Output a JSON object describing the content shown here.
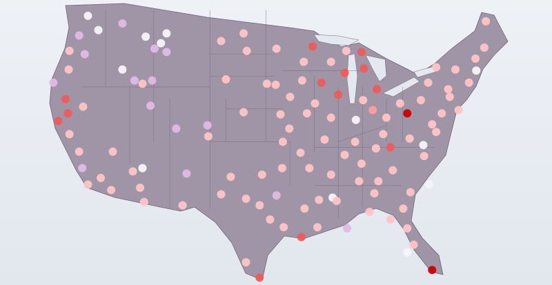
{
  "map": {
    "region": "contiguous-united-states",
    "land_color": "#9f95a6",
    "border_color": "#6f6679",
    "water_color": "#e4e9f0",
    "level_colors": [
      "#f7f4f8",
      "#e2b9e4",
      "#ffc4c4",
      "#ff9e9e",
      "#f05a5a",
      "#cc0000"
    ],
    "points": [
      [
        -119.2,
        48.5,
        0
      ],
      [
        -117.9,
        47.2,
        0
      ],
      [
        -114.9,
        47.8,
        1
      ],
      [
        -120.3,
        46.7,
        1
      ],
      [
        -119.6,
        45.0,
        1
      ],
      [
        -121.5,
        45.3,
        2
      ],
      [
        -121.6,
        43.6,
        2
      ],
      [
        -123.5,
        42.4,
        1
      ],
      [
        -114.9,
        43.6,
        0
      ],
      [
        -112.0,
        46.6,
        0
      ],
      [
        -109.4,
        46.9,
        0
      ],
      [
        -110.1,
        46.0,
        0
      ],
      [
        -110.9,
        45.5,
        1
      ],
      [
        -109.4,
        45.2,
        1
      ],
      [
        -113.4,
        42.6,
        1
      ],
      [
        -112.4,
        42.3,
        2
      ],
      [
        -111.2,
        42.6,
        1
      ],
      [
        -122.0,
        40.9,
        4
      ],
      [
        -121.7,
        39.6,
        4
      ],
      [
        -122.9,
        38.9,
        4
      ],
      [
        -119.8,
        40.2,
        2
      ],
      [
        -121.5,
        37.7,
        2
      ],
      [
        -120.3,
        36.1,
        2
      ],
      [
        -119.9,
        34.6,
        1
      ],
      [
        -119.2,
        33.1,
        2
      ],
      [
        -117.6,
        33.7,
        2
      ],
      [
        -116.1,
        36.1,
        2
      ],
      [
        -116.3,
        32.6,
        2
      ],
      [
        -113.6,
        34.3,
        2
      ],
      [
        -112.4,
        34.6,
        0
      ],
      [
        -112.7,
        32.8,
        2
      ],
      [
        -112.2,
        31.5,
        2
      ],
      [
        -111.4,
        40.3,
        1
      ],
      [
        -108.2,
        38.2,
        1
      ],
      [
        -104.3,
        38.5,
        1
      ],
      [
        -104.2,
        37.5,
        2
      ],
      [
        -106.9,
        34.1,
        1
      ],
      [
        -107.4,
        31.2,
        2
      ],
      [
        -102.6,
        46.2,
        2
      ],
      [
        -99.8,
        46.9,
        2
      ],
      [
        -99.4,
        45.3,
        2
      ],
      [
        -95.7,
        45.5,
        2
      ],
      [
        -102.0,
        42.7,
        2
      ],
      [
        -99.8,
        39.7,
        2
      ],
      [
        -96.9,
        42.3,
        2
      ],
      [
        -95.8,
        42.2,
        2
      ],
      [
        -95.2,
        39.5,
        2
      ],
      [
        -94.1,
        38.2,
        2
      ],
      [
        -94.9,
        37.0,
        2
      ],
      [
        -92.7,
        36.0,
        2
      ],
      [
        -95.0,
        34.6,
        2
      ],
      [
        -97.5,
        34.0,
        2
      ],
      [
        -101.4,
        33.8,
        2
      ],
      [
        -102.6,
        32.2,
        2
      ],
      [
        -99.5,
        31.8,
        2
      ],
      [
        -97.8,
        31.2,
        2
      ],
      [
        -95.7,
        32.1,
        1
      ],
      [
        -96.5,
        29.9,
        2
      ],
      [
        -94.8,
        29.2,
        2
      ],
      [
        -99.5,
        26.0,
        2
      ],
      [
        -97.8,
        24.6,
        4
      ],
      [
        -92.6,
        28.3,
        4
      ],
      [
        -90.6,
        29.2,
        2
      ],
      [
        -88.7,
        31.9,
        0
      ],
      [
        -86.9,
        29.1,
        1
      ],
      [
        -88.2,
        31.6,
        2
      ],
      [
        -91.2,
        45.7,
        4
      ],
      [
        -92.5,
        42.6,
        2
      ],
      [
        -90.1,
        42.4,
        4
      ],
      [
        -87.2,
        43.3,
        4
      ],
      [
        -88.0,
        41.3,
        4
      ],
      [
        -85.8,
        39.0,
        0
      ],
      [
        -84.8,
        43.7,
        4
      ],
      [
        -85.1,
        45.2,
        4
      ],
      [
        -87.0,
        45.3,
        2
      ],
      [
        -83.2,
        41.8,
        4
      ],
      [
        -81.5,
        36.5,
        4
      ],
      [
        -79.4,
        39.6,
        5
      ],
      [
        -75.8,
        43.8,
        2
      ],
      [
        -69.6,
        48.0,
        2
      ],
      [
        -70.8,
        43.5,
        0
      ],
      [
        -69.8,
        45.6,
        2
      ],
      [
        -74.1,
        41.1,
        2
      ],
      [
        -75.8,
        37.9,
        2
      ],
      [
        -76.7,
        33.1,
        0
      ],
      [
        -79.0,
        32.4,
        2
      ],
      [
        -79.4,
        29.1,
        2
      ],
      [
        -78.6,
        27.6,
        2
      ],
      [
        -76.3,
        25.3,
        5
      ],
      [
        -79.4,
        26.9,
        0
      ],
      [
        -83.5,
        32.3,
        2
      ],
      [
        -85.1,
        35.0,
        2
      ],
      [
        -83.0,
        33.4,
        2
      ],
      [
        -81.2,
        34.4,
        2
      ],
      [
        -77.3,
        35.7,
        2
      ],
      [
        -90.9,
        40.5,
        2
      ],
      [
        -89.7,
        37.2,
        2
      ],
      [
        -87.2,
        35.8,
        2
      ],
      [
        -88.9,
        34.0,
        2
      ],
      [
        -91.6,
        34.6,
        2
      ],
      [
        -90.4,
        31.7,
        2
      ],
      [
        -92.2,
        30.9,
        2
      ],
      [
        -85.4,
        33.4,
        2
      ],
      [
        -84.1,
        30.6,
        2
      ],
      [
        -81.5,
        29.9,
        2
      ],
      [
        -79.9,
        30.9,
        2
      ],
      [
        -76.8,
        42.4,
        2
      ],
      [
        -74.3,
        41.8,
        2
      ],
      [
        -77.7,
        40.8,
        2
      ],
      [
        -75.1,
        39.6,
        2
      ],
      [
        -73.0,
        39.9,
        2
      ],
      [
        -76.3,
        38.6,
        2
      ],
      [
        -71.7,
        42.4,
        2
      ],
      [
        -70.9,
        44.6,
        2
      ],
      [
        -73.4,
        43.6,
        2
      ],
      [
        -80.3,
        40.5,
        2
      ],
      [
        -82.0,
        39.2,
        2
      ],
      [
        -83.7,
        39.9,
        3
      ],
      [
        -79.1,
        37.3,
        2
      ],
      [
        -77.4,
        36.7,
        0
      ],
      [
        -82.4,
        37.7,
        2
      ],
      [
        -83.3,
        36.4,
        2
      ],
      [
        -85.9,
        37.0,
        2
      ],
      [
        -94.0,
        41.1,
        2
      ],
      [
        -91.9,
        39.6,
        2
      ],
      [
        -88.9,
        39.2,
        2
      ],
      [
        -84.9,
        40.8,
        2
      ],
      [
        -88.9,
        44.3,
        2
      ],
      [
        -92.3,
        44.3,
        2
      ]
    ]
  }
}
